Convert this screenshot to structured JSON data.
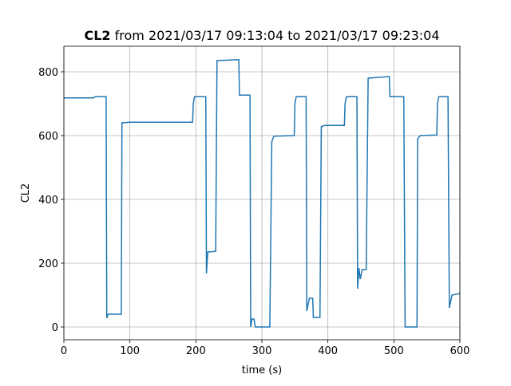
{
  "chart_data": {
    "type": "line",
    "title_bold": "CL2",
    "title": "from 2021/03/17 09:13:04 to 2021/03/17 09:23:04",
    "xlabel": "time (s)",
    "ylabel": "CL2",
    "xlim": [
      0,
      600
    ],
    "ylim": [
      -40,
      880
    ],
    "xticks": [
      0,
      100,
      200,
      300,
      400,
      500,
      600
    ],
    "yticks": [
      0,
      200,
      400,
      600,
      800
    ],
    "grid": true,
    "series": [
      {
        "color": "#1f77b4",
        "x": [
          0,
          45,
          47,
          62,
          64,
          65,
          67,
          85,
          87,
          88,
          100,
          195,
          196,
          198,
          215,
          216,
          218,
          230,
          232,
          265,
          266,
          282,
          283,
          285,
          288,
          290,
          312,
          315,
          318,
          349,
          350,
          352,
          367,
          368,
          372,
          377,
          378,
          388,
          390,
          395,
          425,
          426,
          428,
          444,
          445,
          447,
          449,
          452,
          458,
          461,
          493,
          494,
          515,
          517,
          535,
          536,
          540,
          565,
          566,
          568,
          582,
          584,
          588,
          600
        ],
        "values": [
          718,
          718,
          722,
          722,
          722,
          28,
          40,
          40,
          40,
          640,
          642,
          642,
          700,
          722,
          722,
          168,
          235,
          237,
          835,
          838,
          727,
          727,
          0,
          25,
          25,
          0,
          0,
          580,
          598,
          600,
          700,
          722,
          722,
          50,
          90,
          90,
          30,
          30,
          628,
          632,
          632,
          700,
          722,
          722,
          120,
          185,
          150,
          180,
          180,
          780,
          785,
          722,
          722,
          0,
          0,
          590,
          600,
          602,
          700,
          722,
          722,
          60,
          100,
          105
        ]
      }
    ]
  }
}
